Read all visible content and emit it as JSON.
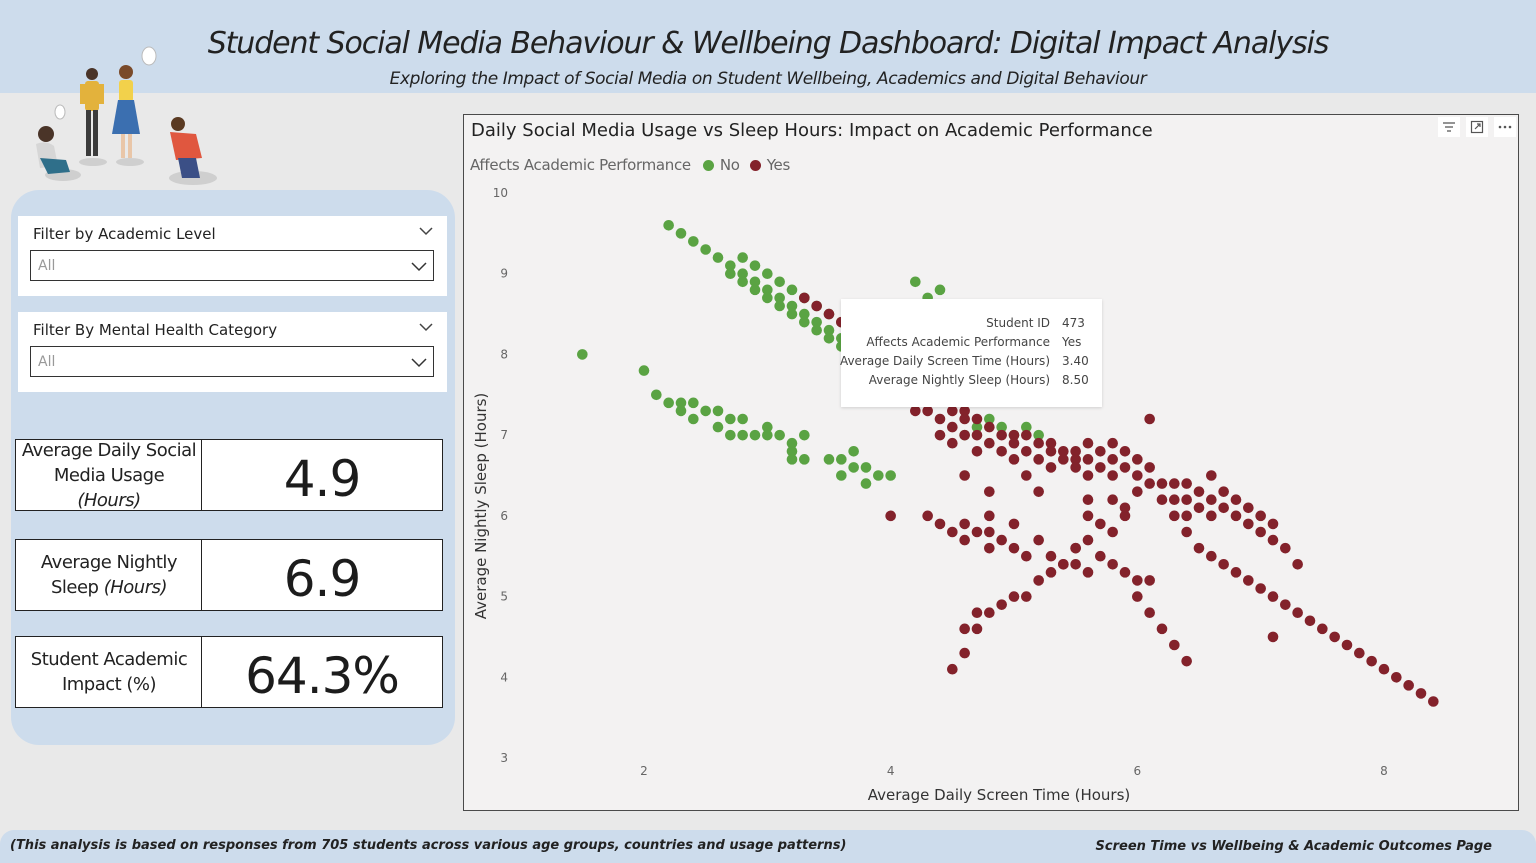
{
  "header": {
    "title": "Student Social Media Behaviour & Wellbeing Dashboard: Digital Impact Analysis",
    "subtitle": "Exploring the Impact of Social Media on Student Wellbeing, Academics and Digital Behaviour"
  },
  "filters": [
    {
      "title": "Filter by Academic Level",
      "value": "All"
    },
    {
      "title": "Filter By Mental Health Category",
      "value": "All"
    }
  ],
  "kpis": [
    {
      "label_main": "Average Daily Social Media Usage ",
      "label_unit": "(Hours)",
      "value": "4.9"
    },
    {
      "label_main": "Average Nightly Sleep ",
      "label_unit": "(Hours)",
      "value": "6.9"
    },
    {
      "label_main": "Student Academic Impact (%)",
      "label_unit": "",
      "value": "64.3%"
    }
  ],
  "colors": {
    "no": "#5aa343",
    "yes": "#83222b",
    "header_bg": "#cddcec"
  },
  "icons": {
    "filter": "filter-icon",
    "focus": "focus-mode-icon",
    "more": "more-options-icon",
    "chevron": "chevron-down-icon"
  },
  "tooltip": {
    "rows": [
      {
        "key": "Student ID",
        "value": "473"
      },
      {
        "key": "Affects Academic Performance",
        "value": "Yes"
      },
      {
        "key": "Average Daily Screen Time (Hours)",
        "value": "3.40"
      },
      {
        "key": "Average Nightly Sleep (Hours)",
        "value": "8.50"
      }
    ]
  },
  "chart_data": {
    "type": "scatter",
    "title": "Daily Social Media Usage vs Sleep Hours: Impact on Academic Performance",
    "xlabel": "Average Daily Screen Time (Hours)",
    "ylabel": "Average Nightly Sleep (Hours)",
    "legend_title": "Affects Academic Performance",
    "legend_position": "top-left",
    "xlim": [
      1.5,
      8.5
    ],
    "ylim": [
      3,
      10
    ],
    "x_ticks": [
      2,
      4,
      6,
      8
    ],
    "y_ticks": [
      3,
      4,
      5,
      6,
      7,
      8,
      9,
      10
    ],
    "grid": false,
    "series": [
      {
        "name": "No",
        "color": "#5aa343",
        "points": [
          [
            1.5,
            8.0
          ],
          [
            2.0,
            7.8
          ],
          [
            2.1,
            7.5
          ],
          [
            2.2,
            7.4
          ],
          [
            2.3,
            7.4
          ],
          [
            2.3,
            7.3
          ],
          [
            2.4,
            7.4
          ],
          [
            2.4,
            7.2
          ],
          [
            2.5,
            7.3
          ],
          [
            2.6,
            7.3
          ],
          [
            2.6,
            7.1
          ],
          [
            2.7,
            7.2
          ],
          [
            2.7,
            7.0
          ],
          [
            2.8,
            7.2
          ],
          [
            2.8,
            7.0
          ],
          [
            2.9,
            7.0
          ],
          [
            3.0,
            7.1
          ],
          [
            3.0,
            7.0
          ],
          [
            3.1,
            7.0
          ],
          [
            3.2,
            6.9
          ],
          [
            3.2,
            6.8
          ],
          [
            3.2,
            6.7
          ],
          [
            3.3,
            7.0
          ],
          [
            3.3,
            6.7
          ],
          [
            3.5,
            6.7
          ],
          [
            3.6,
            6.7
          ],
          [
            3.6,
            6.5
          ],
          [
            3.7,
            6.8
          ],
          [
            3.7,
            6.6
          ],
          [
            3.8,
            6.6
          ],
          [
            3.8,
            6.4
          ],
          [
            3.9,
            6.5
          ],
          [
            4.0,
            6.5
          ],
          [
            2.2,
            9.6
          ],
          [
            2.3,
            9.5
          ],
          [
            2.4,
            9.4
          ],
          [
            2.5,
            9.3
          ],
          [
            2.6,
            9.2
          ],
          [
            2.7,
            9.1
          ],
          [
            2.7,
            9.0
          ],
          [
            2.8,
            9.2
          ],
          [
            2.8,
            9.0
          ],
          [
            2.8,
            8.9
          ],
          [
            2.9,
            9.1
          ],
          [
            2.9,
            8.9
          ],
          [
            2.9,
            8.8
          ],
          [
            3.0,
            9.0
          ],
          [
            3.0,
            8.8
          ],
          [
            3.0,
            8.7
          ],
          [
            3.1,
            8.9
          ],
          [
            3.1,
            8.7
          ],
          [
            3.1,
            8.6
          ],
          [
            3.2,
            8.8
          ],
          [
            3.2,
            8.6
          ],
          [
            3.2,
            8.5
          ],
          [
            3.3,
            8.7
          ],
          [
            3.3,
            8.5
          ],
          [
            3.3,
            8.4
          ],
          [
            3.4,
            8.6
          ],
          [
            3.4,
            8.4
          ],
          [
            3.4,
            8.3
          ],
          [
            3.5,
            8.5
          ],
          [
            3.5,
            8.3
          ],
          [
            3.5,
            8.2
          ],
          [
            3.6,
            8.4
          ],
          [
            3.6,
            8.2
          ],
          [
            3.6,
            8.1
          ],
          [
            3.7,
            8.3
          ],
          [
            3.7,
            8.1
          ],
          [
            4.2,
            8.9
          ],
          [
            4.3,
            8.7
          ],
          [
            4.4,
            8.8
          ],
          [
            4.6,
            7.0
          ],
          [
            4.7,
            7.1
          ],
          [
            4.8,
            7.2
          ],
          [
            4.9,
            7.1
          ],
          [
            5.0,
            7.0
          ],
          [
            5.1,
            7.1
          ],
          [
            5.2,
            7.0
          ]
        ]
      },
      {
        "name": "Yes",
        "color": "#83222b",
        "points": [
          [
            3.3,
            8.7
          ],
          [
            3.4,
            8.6
          ],
          [
            3.5,
            8.5
          ],
          [
            3.6,
            8.4
          ],
          [
            3.7,
            8.6
          ],
          [
            4.2,
            7.3
          ],
          [
            4.3,
            7.3
          ],
          [
            4.4,
            7.2
          ],
          [
            4.4,
            7.0
          ],
          [
            4.5,
            7.3
          ],
          [
            4.5,
            7.1
          ],
          [
            4.5,
            6.9
          ],
          [
            4.6,
            7.3
          ],
          [
            4.6,
            7.2
          ],
          [
            4.6,
            7.0
          ],
          [
            4.7,
            7.2
          ],
          [
            4.7,
            7.0
          ],
          [
            4.7,
            6.8
          ],
          [
            4.8,
            7.1
          ],
          [
            4.8,
            6.9
          ],
          [
            4.9,
            7.0
          ],
          [
            4.9,
            6.8
          ],
          [
            5.0,
            7.0
          ],
          [
            5.0,
            6.9
          ],
          [
            5.0,
            6.7
          ],
          [
            5.1,
            7.0
          ],
          [
            5.1,
            6.8
          ],
          [
            5.2,
            6.9
          ],
          [
            5.2,
            6.7
          ],
          [
            5.3,
            6.9
          ],
          [
            5.3,
            6.8
          ],
          [
            5.3,
            6.6
          ],
          [
            5.4,
            6.8
          ],
          [
            5.4,
            6.7
          ],
          [
            5.5,
            6.8
          ],
          [
            5.5,
            6.7
          ],
          [
            5.5,
            6.6
          ],
          [
            5.6,
            6.9
          ],
          [
            5.6,
            6.7
          ],
          [
            5.6,
            6.5
          ],
          [
            5.7,
            6.8
          ],
          [
            5.7,
            6.6
          ],
          [
            5.8,
            6.9
          ],
          [
            5.8,
            6.7
          ],
          [
            5.8,
            6.5
          ],
          [
            5.9,
            6.8
          ],
          [
            5.9,
            6.6
          ],
          [
            6.0,
            6.7
          ],
          [
            6.0,
            6.5
          ],
          [
            6.0,
            6.3
          ],
          [
            6.1,
            6.6
          ],
          [
            6.1,
            6.4
          ],
          [
            6.2,
            6.4
          ],
          [
            6.2,
            6.2
          ],
          [
            6.3,
            6.4
          ],
          [
            6.3,
            6.2
          ],
          [
            6.4,
            6.4
          ],
          [
            6.4,
            6.2
          ],
          [
            6.4,
            6.0
          ],
          [
            6.5,
            6.3
          ],
          [
            6.5,
            6.1
          ],
          [
            6.6,
            6.5
          ],
          [
            6.6,
            6.2
          ],
          [
            6.6,
            6.0
          ],
          [
            6.7,
            6.3
          ],
          [
            6.7,
            6.1
          ],
          [
            6.8,
            6.2
          ],
          [
            6.8,
            6.0
          ],
          [
            6.9,
            6.1
          ],
          [
            6.9,
            5.9
          ],
          [
            7.0,
            6.0
          ],
          [
            7.0,
            5.8
          ],
          [
            7.1,
            5.9
          ],
          [
            7.1,
            5.7
          ],
          [
            7.2,
            5.6
          ],
          [
            7.3,
            5.4
          ],
          [
            6.3,
            6.0
          ],
          [
            6.4,
            5.8
          ],
          [
            6.5,
            5.6
          ],
          [
            6.6,
            5.5
          ],
          [
            6.7,
            5.4
          ],
          [
            6.8,
            5.3
          ],
          [
            6.9,
            5.2
          ],
          [
            7.0,
            5.1
          ],
          [
            7.1,
            5.0
          ],
          [
            7.2,
            4.9
          ],
          [
            7.3,
            4.8
          ],
          [
            7.4,
            4.7
          ],
          [
            7.5,
            4.6
          ],
          [
            7.6,
            4.5
          ],
          [
            7.7,
            4.4
          ],
          [
            7.8,
            4.3
          ],
          [
            7.9,
            4.2
          ],
          [
            8.0,
            4.1
          ],
          [
            8.1,
            4.0
          ],
          [
            8.2,
            3.9
          ],
          [
            8.3,
            3.8
          ],
          [
            8.4,
            3.7
          ],
          [
            6.1,
            7.2
          ],
          [
            4.3,
            6.0
          ],
          [
            4.4,
            5.9
          ],
          [
            4.5,
            5.8
          ],
          [
            4.6,
            5.9
          ],
          [
            4.6,
            5.7
          ],
          [
            4.7,
            5.8
          ],
          [
            4.8,
            5.8
          ],
          [
            4.8,
            5.6
          ],
          [
            4.9,
            5.7
          ],
          [
            5.0,
            5.6
          ],
          [
            5.1,
            5.5
          ],
          [
            5.2,
            5.7
          ],
          [
            5.3,
            5.5
          ],
          [
            5.4,
            5.4
          ],
          [
            5.5,
            5.6
          ],
          [
            5.5,
            5.4
          ],
          [
            5.6,
            5.3
          ],
          [
            5.7,
            5.5
          ],
          [
            5.8,
            5.4
          ],
          [
            5.9,
            5.3
          ],
          [
            6.0,
            5.2
          ],
          [
            4.0,
            6.0
          ],
          [
            4.5,
            4.1
          ],
          [
            4.6,
            4.3
          ],
          [
            4.6,
            4.6
          ],
          [
            4.7,
            4.6
          ],
          [
            4.7,
            4.8
          ],
          [
            4.8,
            4.8
          ],
          [
            4.9,
            4.9
          ],
          [
            5.0,
            5.0
          ],
          [
            5.1,
            5.0
          ],
          [
            5.2,
            5.2
          ],
          [
            5.3,
            5.3
          ],
          [
            5.4,
            5.4
          ],
          [
            5.5,
            5.6
          ],
          [
            5.6,
            5.7
          ],
          [
            5.7,
            5.9
          ],
          [
            5.8,
            5.8
          ],
          [
            5.9,
            6.0
          ],
          [
            5.6,
            6.2
          ],
          [
            5.8,
            6.2
          ],
          [
            5.9,
            6.1
          ],
          [
            6.0,
            5.0
          ],
          [
            6.1,
            4.8
          ],
          [
            6.2,
            4.6
          ],
          [
            6.3,
            4.4
          ],
          [
            6.4,
            4.2
          ],
          [
            6.1,
            5.2
          ],
          [
            7.1,
            4.5
          ],
          [
            4.6,
            6.5
          ],
          [
            4.8,
            6.3
          ],
          [
            4.8,
            6.0
          ],
          [
            5.0,
            5.9
          ],
          [
            5.1,
            6.5
          ],
          [
            5.2,
            6.3
          ],
          [
            5.6,
            6.0
          ]
        ]
      }
    ]
  },
  "footer": {
    "left": "(This analysis is based on responses from 705 students across various age groups, countries and usage patterns)",
    "right": "Screen Time vs Wellbeing & Academic Outcomes Page"
  }
}
